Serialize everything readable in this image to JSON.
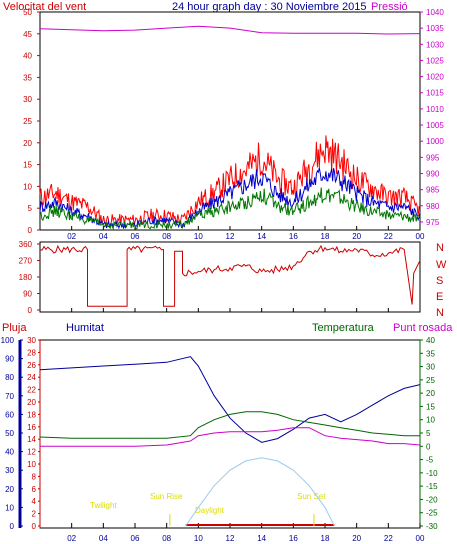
{
  "header": {
    "wind_label": "Velocitat del vent",
    "title": "24 hour graph day : 30 Noviembre 2015",
    "pressure_label": "Pressió"
  },
  "compass": [
    "N",
    "W",
    "S",
    "E",
    "N"
  ],
  "lower_labels": {
    "rain": "Pluja",
    "humidity": "Humitat",
    "temperature": "Temperatura",
    "dewpoint": "Punt rosada"
  },
  "astro_labels": {
    "twilight_am": "Twilight",
    "sunrise": "Sun Rise",
    "daylight": "Daylight",
    "sunset": "Sun Set"
  },
  "colors": {
    "wind_axis": "#cc0000",
    "pressure_axis": "#cc00cc",
    "humidity": "#000099",
    "temperature": "#006600",
    "dewpoint": "#cc00cc",
    "rain": "#cc0000",
    "astro_text": "#dddd00",
    "sun_curve": "#99ccee"
  },
  "chart_data": [
    {
      "type": "line",
      "panel": "wind-pressure",
      "x_ticks": [
        "02",
        "04",
        "06",
        "08",
        "10",
        "12",
        "14",
        "16",
        "18",
        "20",
        "22",
        "00"
      ],
      "y_left_ticks": [
        0,
        5,
        10,
        15,
        20,
        25,
        30,
        35,
        40,
        45,
        50
      ],
      "y_left_range": [
        0,
        50
      ],
      "y_right_ticks": [
        975,
        980,
        985,
        990,
        995,
        1000,
        1005,
        1010,
        1015,
        1020,
        1025,
        1030,
        1035,
        1040
      ],
      "y_right_range": [
        972.5,
        1040
      ],
      "series": [
        {
          "name": "gust",
          "color": "#ff0000",
          "x": [
            0,
            1,
            2,
            3,
            4,
            5,
            6,
            7,
            8,
            9,
            10,
            11,
            12,
            13,
            14,
            15,
            16,
            17,
            18,
            19,
            20,
            21,
            22,
            23,
            24
          ],
          "y": [
            7,
            8,
            6,
            5,
            2,
            2,
            2,
            3,
            3,
            2,
            6,
            8,
            11,
            13,
            16,
            11,
            9,
            14,
            18,
            15,
            11,
            9,
            7,
            7,
            4
          ]
        },
        {
          "name": "average",
          "color": "#0000cc",
          "x": [
            0,
            1,
            2,
            3,
            4,
            5,
            6,
            7,
            8,
            9,
            10,
            11,
            12,
            13,
            14,
            15,
            16,
            17,
            18,
            19,
            20,
            21,
            22,
            23,
            24
          ],
          "y": [
            5,
            6,
            4,
            3,
            1,
            1,
            1,
            2,
            2,
            1,
            4,
            6,
            8,
            10,
            12,
            8,
            6,
            10,
            13,
            11,
            8,
            6,
            5,
            5,
            3
          ]
        },
        {
          "name": "wind",
          "color": "#007700",
          "x": [
            0,
            1,
            2,
            3,
            4,
            5,
            6,
            7,
            8,
            9,
            10,
            11,
            12,
            13,
            14,
            15,
            16,
            17,
            18,
            19,
            20,
            21,
            22,
            23,
            24
          ],
          "y": [
            3,
            4,
            3,
            2,
            1,
            1,
            1,
            1,
            1,
            1,
            3,
            4,
            5,
            6,
            8,
            5,
            4,
            6,
            8,
            7,
            5,
            4,
            3,
            3,
            2
          ]
        },
        {
          "name": "pressure",
          "color": "#cc00cc",
          "x": [
            0,
            2,
            4,
            6,
            8,
            10,
            12,
            14,
            16,
            18,
            20,
            22,
            24
          ],
          "y": [
            1034.8,
            1034.5,
            1034.2,
            1034.4,
            1035.0,
            1035.6,
            1035.0,
            1033.6,
            1033.4,
            1033.4,
            1033.4,
            1033.2,
            1033.3
          ]
        }
      ]
    },
    {
      "type": "line",
      "panel": "wind-direction",
      "y_ticks": [
        0,
        90,
        180,
        270,
        360
      ],
      "y_range": [
        0,
        360
      ],
      "series": [
        {
          "name": "direction",
          "color": "#cc0000",
          "x": [
            0,
            3.0,
            3.0,
            5.5,
            5.5,
            7.8,
            7.8,
            8.5,
            8.5,
            9.0,
            9.0,
            10,
            11,
            12,
            13,
            14,
            15,
            16,
            17,
            18,
            19,
            20,
            21,
            22,
            23,
            23.5,
            23.6,
            24
          ],
          "y": [
            330,
            330,
            20,
            20,
            330,
            330,
            20,
            20,
            320,
            320,
            200,
            210,
            220,
            230,
            240,
            210,
            220,
            240,
            320,
            340,
            320,
            330,
            300,
            310,
            330,
            30,
            200,
            270
          ]
        }
      ]
    },
    {
      "type": "line",
      "panel": "humidity-temperature-rain",
      "y_rain_ticks": [
        0,
        2,
        4,
        6,
        8,
        10,
        12,
        14,
        16,
        18,
        20,
        22,
        24,
        26,
        28,
        30
      ],
      "y_humidity_ticks": [
        0,
        10,
        20,
        30,
        40,
        50,
        60,
        70,
        80,
        90,
        100
      ],
      "y_temperature_ticks": [
        -30,
        -25,
        -20,
        -15,
        -10,
        -5,
        0,
        5,
        10,
        15,
        20,
        25,
        30,
        35,
        40
      ],
      "y_temperature_range": [
        -30,
        40
      ],
      "series": [
        {
          "name": "humidity",
          "color": "#000099",
          "x": [
            0,
            2,
            4,
            6,
            8,
            9.5,
            10,
            11,
            12,
            13,
            14,
            15,
            16,
            17,
            18,
            19,
            20,
            21,
            22,
            23,
            24
          ],
          "y": [
            84,
            85,
            86,
            87,
            88,
            91,
            86,
            70,
            58,
            50,
            45,
            47,
            52,
            58,
            60,
            56,
            60,
            65,
            70,
            74,
            76
          ]
        },
        {
          "name": "temperature",
          "color": "#006600",
          "x": [
            0,
            2,
            4,
            6,
            8,
            9.5,
            10,
            11,
            12,
            13,
            14,
            15,
            16,
            17,
            18,
            19,
            20,
            21,
            22,
            23,
            24
          ],
          "y": [
            3.5,
            3,
            3,
            3,
            3,
            4,
            7,
            10,
            12,
            13,
            13,
            12,
            10,
            9,
            8,
            7,
            6,
            5,
            4.5,
            4,
            4
          ]
        },
        {
          "name": "dewpoint",
          "color": "#cc00cc",
          "x": [
            0,
            2,
            4,
            6,
            8,
            9.5,
            10,
            11,
            12,
            13,
            14,
            15,
            16,
            17,
            18,
            19,
            20,
            21,
            22,
            23,
            24
          ],
          "y": [
            0,
            0,
            0,
            0,
            0.5,
            2,
            4,
            5,
            5.5,
            5.5,
            5.5,
            6,
            7,
            7,
            4,
            3,
            2.5,
            2,
            1,
            1,
            0.5
          ]
        },
        {
          "name": "sun",
          "color": "#99ccee",
          "x": [
            9.2,
            10,
            11,
            12,
            13,
            14,
            15,
            16,
            17,
            18,
            18.6
          ],
          "y": [
            0,
            3,
            6.5,
            9,
            10.5,
            11,
            10.5,
            9,
            6.5,
            3,
            0
          ]
        }
      ]
    }
  ]
}
